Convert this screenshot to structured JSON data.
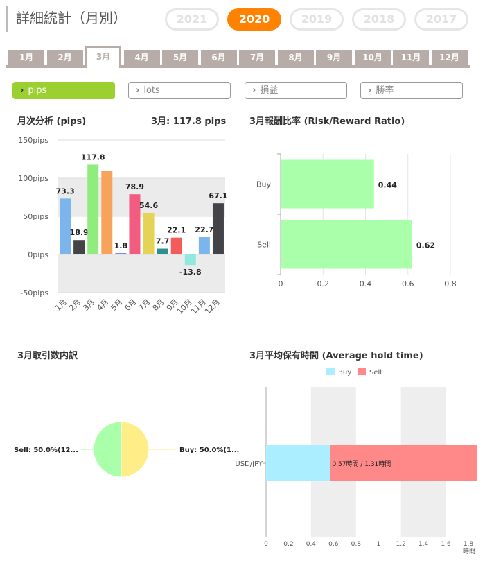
{
  "header": {
    "title": "詳細統計（月別）"
  },
  "years": [
    {
      "label": "2021",
      "active": false
    },
    {
      "label": "2020",
      "active": true
    },
    {
      "label": "2019",
      "active": false
    },
    {
      "label": "2018",
      "active": false
    },
    {
      "label": "2017",
      "active": false
    }
  ],
  "months": [
    "1月",
    "2月",
    "3月",
    "4月",
    "5月",
    "6月",
    "7月",
    "8月",
    "9月",
    "10月",
    "11月",
    "12月"
  ],
  "active_month": "3月",
  "filters": [
    {
      "label": "pips",
      "active": true
    },
    {
      "label": "lots",
      "active": false
    },
    {
      "label": "損益",
      "active": false
    },
    {
      "label": "勝率",
      "active": false
    }
  ],
  "chevron_icon": "chevron-right-icon",
  "colors": {
    "accent": "#ff8200",
    "tab": "#b8aca8",
    "filter_active": "#9ccf30",
    "bar_green": "#aaffaa",
    "buy": "#aaeeff",
    "sell": "#ff8888"
  },
  "sections": {
    "monthly_title": "月次分析 (pips)",
    "monthly_summary": "3月:  117.8 pips",
    "rr_title": "3月報酬比率 (Risk/Reward Ratio)",
    "trades_title": "3月取引数内訳",
    "hold_title": "3月平均保有時間 (Average hold time)"
  },
  "chart_data": [
    {
      "type": "bar",
      "categories": [
        "1月",
        "2月",
        "3月",
        "4月",
        "5月",
        "6月",
        "7月",
        "8月",
        "9月",
        "10月",
        "11月",
        "12月"
      ],
      "values": [
        73.3,
        18.9,
        117.8,
        110.0,
        1.8,
        78.9,
        54.6,
        7.7,
        22.1,
        -13.8,
        22.7,
        67.1
      ],
      "data_labels": [
        "73.3",
        "18.9",
        "117.8",
        "",
        "1.8",
        "78.9",
        "54.6",
        "7.7",
        "22.1",
        "-13.8",
        "22.7",
        "67.1"
      ],
      "colors": [
        "#7cb5ec",
        "#434348",
        "#90ed7d",
        "#f7a35c",
        "#8085e9",
        "#f15c80",
        "#e4d354",
        "#2b908f",
        "#f45b5b",
        "#91e8e1",
        "#7cb5ec",
        "#434348"
      ],
      "ylim": [
        -50,
        150
      ],
      "yticks": [
        "150pips",
        "100pips",
        "50pips",
        "0pips",
        "-50pips"
      ]
    },
    {
      "type": "bar",
      "orientation": "horizontal",
      "categories": [
        "Buy",
        "Sell"
      ],
      "values": [
        0.44,
        0.62
      ],
      "data_labels": [
        "0.44",
        "0.62"
      ],
      "xlim": [
        0,
        0.9
      ],
      "xticks": [
        "0",
        "0.2",
        "0.4",
        "0.6",
        "0.8"
      ]
    },
    {
      "type": "pie",
      "slices": [
        {
          "label": "Sell: 50.0%(12...",
          "value": 50.0,
          "color": "#aaffaa"
        },
        {
          "label": "Buy: 50.0%(1...",
          "value": 50.0,
          "color": "#ffee88"
        }
      ]
    },
    {
      "type": "bar",
      "orientation": "horizontal",
      "stacked": true,
      "categories": [
        "USD/JPY"
      ],
      "series": [
        {
          "name": "Buy",
          "values": [
            0.57
          ]
        },
        {
          "name": "Sell",
          "values": [
            1.31
          ]
        }
      ],
      "data_label": "0.57時間 / 1.31時間",
      "xlim": [
        0,
        1.95
      ],
      "xticks": [
        "0",
        "0.2",
        "0.4",
        "0.6",
        "0.8",
        "1",
        "1.2",
        "1.4",
        "1.6",
        "1.8"
      ],
      "xlabel": "時間"
    }
  ]
}
